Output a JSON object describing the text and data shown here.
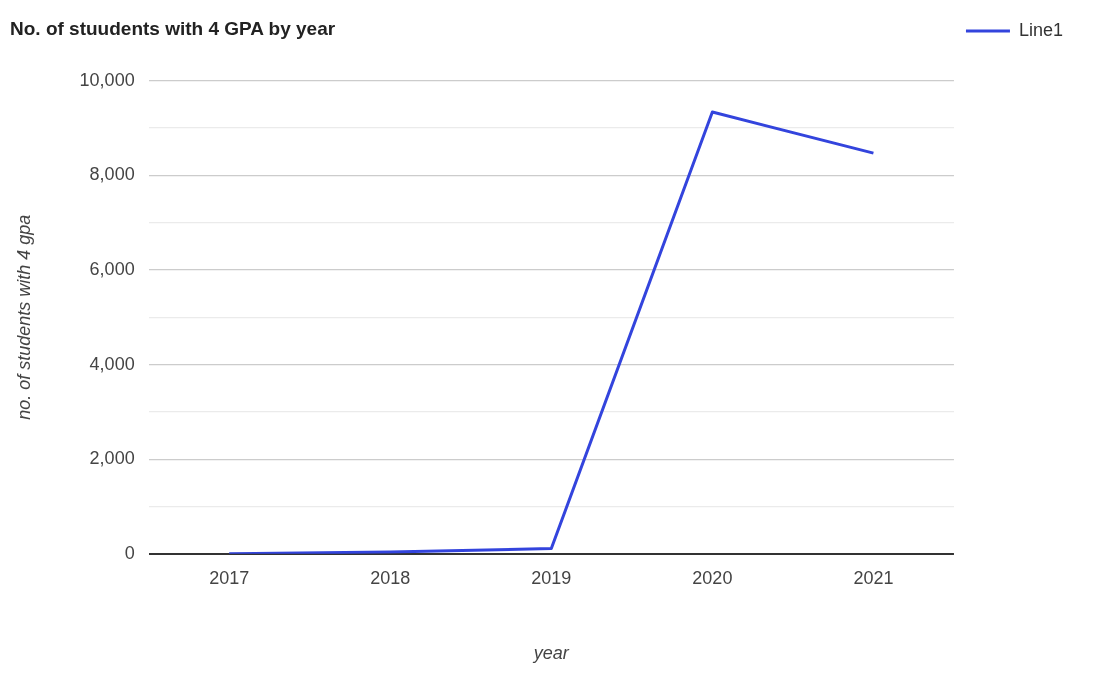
{
  "chart_data": {
    "type": "line",
    "title": "No. of stuudents with 4 GPA by year",
    "xlabel": "year",
    "ylabel": "no. of students with 4 gpa",
    "categories": [
      "2017",
      "2018",
      "2019",
      "2020",
      "2021"
    ],
    "series": [
      {
        "name": "Line1",
        "color": "#3344dd",
        "values": [
          0,
          40,
          110,
          9340,
          8470
        ]
      }
    ],
    "ylim": [
      0,
      10000
    ],
    "yticks": [
      0,
      {
        "value": 1000,
        "label": null
      },
      {
        "value": 2000,
        "label": "2,000"
      },
      {
        "value": 3000,
        "label": null
      },
      {
        "value": 4000,
        "label": "4,000"
      },
      {
        "value": 5000,
        "label": null
      },
      {
        "value": 6000,
        "label": "6,000"
      },
      {
        "value": 7000,
        "label": null
      },
      {
        "value": 8000,
        "label": "8,000"
      },
      {
        "value": 9000,
        "label": null
      },
      {
        "value": 10000,
        "label": "10,000"
      }
    ],
    "grid": "y",
    "legend": "top right",
    "marker": "none",
    "line_style": "solid"
  }
}
